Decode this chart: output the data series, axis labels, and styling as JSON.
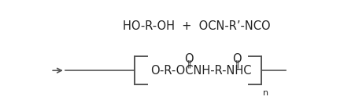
{
  "bg_color": "#ffffff",
  "text_color": "#222222",
  "line_color": "#555555",
  "reactants_text": "HO-R-OH  +  OCN-R’-NCO",
  "reactants_fontsize": 10.5,
  "product_formula": "O-R-OCNH-R-NHC",
  "product_fontsize": 10.5,
  "n_subscript": "n",
  "o_fontsize": 10.5,
  "db_fontsize": 8
}
